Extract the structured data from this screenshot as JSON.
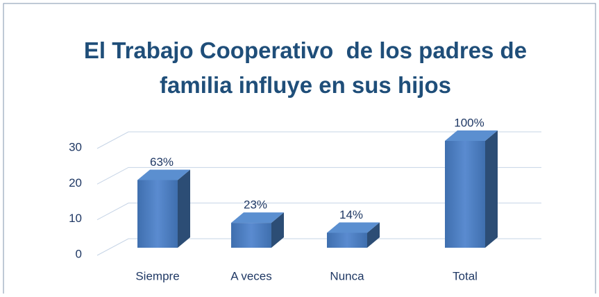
{
  "chart_data": {
    "type": "bar3d",
    "title": "El Trabajo Cooperativo  de los padres de familia influye en sus hijos",
    "categories": [
      "Siempre",
      "A veces",
      "Nunca",
      "Total"
    ],
    "values": [
      19,
      7,
      4.2,
      30
    ],
    "value_labels": [
      "63%",
      "23%",
      "14%",
      "100%"
    ],
    "color": "#4f81bd",
    "ylim": [
      0,
      30
    ],
    "yticks": [
      0,
      10,
      20,
      30
    ],
    "grid": true
  }
}
